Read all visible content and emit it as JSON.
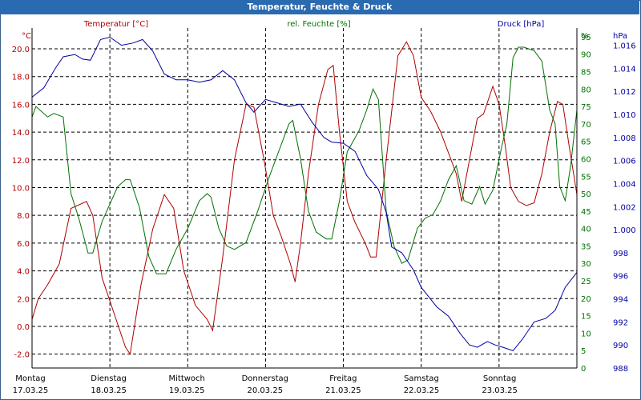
{
  "chart_data": {
    "type": "line",
    "title": "Temperatur, Feuchte & Druck",
    "colors": {
      "temperature": "#b00000",
      "humidity": "#007000",
      "pressure": "#0000a0",
      "grid": "#000000",
      "title_bg": "#2a6ab0"
    },
    "x_range": [
      0,
      7
    ],
    "x_labels": [
      {
        "day": "Montag",
        "date": "17.03.25"
      },
      {
        "day": "Dienstag",
        "date": "18.03.25"
      },
      {
        "day": "Mittwoch",
        "date": "19.03.25"
      },
      {
        "day": "Donnerstag",
        "date": "20.03.25"
      },
      {
        "day": "Freitag",
        "date": "21.03.25"
      },
      {
        "day": "Samstag",
        "date": "22.03.25"
      },
      {
        "day": "Sonntag",
        "date": "23.03.25"
      }
    ],
    "axes": {
      "temperature": {
        "unit": "°C",
        "label": "Temperatur [°C]",
        "ylim": [
          -3,
          21.5
        ],
        "ticks": [
          "20.0",
          "18.0",
          "16.0",
          "14.0",
          "12.0",
          "10.0",
          "8.0",
          "6.0",
          "4.0",
          "2.0",
          "0.0",
          "-2.0"
        ]
      },
      "humidity": {
        "unit": "%",
        "label": "rel. Feuchte [%]",
        "ylim": [
          0,
          97.5
        ],
        "ticks": [
          "95",
          "90",
          "85",
          "80",
          "75",
          "70",
          "65",
          "60",
          "55",
          "50",
          "45",
          "40",
          "35",
          "30",
          "25",
          "20",
          "15",
          "10",
          "5",
          "0"
        ]
      },
      "pressure": {
        "unit": "hPa",
        "label": "Druck [hPa]",
        "ylim": [
          988,
          1017.5
        ],
        "ticks": [
          "1.016",
          "1.014",
          "1.012",
          "1.010",
          "1.008",
          "1.006",
          "1.004",
          "1.002",
          "1.000",
          "998",
          "996",
          "994",
          "992",
          "990",
          "988"
        ]
      }
    },
    "series": [
      {
        "name": "Temperatur",
        "color": "#b00000",
        "axis": "temperature",
        "points": [
          [
            0,
            0.5
          ],
          [
            0.08,
            2
          ],
          [
            0.2,
            3
          ],
          [
            0.35,
            4.5
          ],
          [
            0.5,
            8.5
          ],
          [
            0.7,
            9
          ],
          [
            0.78,
            8
          ],
          [
            0.9,
            3.5
          ],
          [
            1.05,
            1
          ],
          [
            1.2,
            -1.5
          ],
          [
            1.26,
            -2
          ],
          [
            1.4,
            3
          ],
          [
            1.55,
            7
          ],
          [
            1.7,
            9.5
          ],
          [
            1.82,
            8.5
          ],
          [
            1.95,
            4
          ],
          [
            2.1,
            1.5
          ],
          [
            2.25,
            0.5
          ],
          [
            2.32,
            -0.3
          ],
          [
            2.45,
            5
          ],
          [
            2.6,
            12
          ],
          [
            2.75,
            16
          ],
          [
            2.85,
            15.8
          ],
          [
            2.98,
            12
          ],
          [
            3.1,
            8
          ],
          [
            3.2,
            6.5
          ],
          [
            3.32,
            4.5
          ],
          [
            3.38,
            3.2
          ],
          [
            3.45,
            6
          ],
          [
            3.55,
            11
          ],
          [
            3.68,
            16
          ],
          [
            3.8,
            18.5
          ],
          [
            3.87,
            18.8
          ],
          [
            3.95,
            14
          ],
          [
            4.05,
            9
          ],
          [
            4.15,
            7.5
          ],
          [
            4.28,
            6
          ],
          [
            4.35,
            5
          ],
          [
            4.42,
            5
          ],
          [
            4.55,
            12
          ],
          [
            4.7,
            19.5
          ],
          [
            4.81,
            20.5
          ],
          [
            4.9,
            19.5
          ],
          [
            5.0,
            16.5
          ],
          [
            5.12,
            15.5
          ],
          [
            5.25,
            14
          ],
          [
            5.35,
            12.5
          ],
          [
            5.45,
            11
          ],
          [
            5.52,
            9
          ],
          [
            5.62,
            12
          ],
          [
            5.72,
            15
          ],
          [
            5.8,
            15.3
          ],
          [
            5.92,
            17.3
          ],
          [
            6.0,
            16
          ],
          [
            6.08,
            13
          ],
          [
            6.15,
            10
          ],
          [
            6.25,
            9
          ],
          [
            6.35,
            8.7
          ],
          [
            6.45,
            8.9
          ],
          [
            6.55,
            11
          ],
          [
            6.65,
            14
          ],
          [
            6.75,
            16.2
          ],
          [
            6.82,
            16
          ],
          [
            6.9,
            13
          ],
          [
            7.0,
            9.5
          ]
        ]
      },
      {
        "name": "rel. Feuchte",
        "color": "#007000",
        "axis": "humidity",
        "points": [
          [
            0,
            72
          ],
          [
            0.05,
            75
          ],
          [
            0.2,
            72
          ],
          [
            0.28,
            73
          ],
          [
            0.4,
            72
          ],
          [
            0.5,
            50
          ],
          [
            0.6,
            43
          ],
          [
            0.72,
            33
          ],
          [
            0.78,
            33
          ],
          [
            0.9,
            42
          ],
          [
            1.0,
            47
          ],
          [
            1.1,
            52
          ],
          [
            1.2,
            54
          ],
          [
            1.26,
            54
          ],
          [
            1.38,
            46
          ],
          [
            1.5,
            32
          ],
          [
            1.6,
            27
          ],
          [
            1.72,
            27
          ],
          [
            1.85,
            34
          ],
          [
            2.0,
            40
          ],
          [
            2.15,
            48
          ],
          [
            2.25,
            50
          ],
          [
            2.3,
            49
          ],
          [
            2.4,
            40
          ],
          [
            2.5,
            35
          ],
          [
            2.6,
            34
          ],
          [
            2.75,
            36
          ],
          [
            2.9,
            45
          ],
          [
            3.05,
            55
          ],
          [
            3.2,
            64
          ],
          [
            3.3,
            70
          ],
          [
            3.35,
            71
          ],
          [
            3.45,
            60
          ],
          [
            3.55,
            45
          ],
          [
            3.65,
            39
          ],
          [
            3.78,
            37
          ],
          [
            3.85,
            37
          ],
          [
            3.95,
            48
          ],
          [
            4.05,
            62
          ],
          [
            4.2,
            68
          ],
          [
            4.3,
            74
          ],
          [
            4.38,
            80
          ],
          [
            4.45,
            77
          ],
          [
            4.55,
            45
          ],
          [
            4.65,
            35
          ],
          [
            4.75,
            30
          ],
          [
            4.83,
            31
          ],
          [
            4.95,
            40
          ],
          [
            5.05,
            43
          ],
          [
            5.15,
            44
          ],
          [
            5.25,
            48
          ],
          [
            5.35,
            54
          ],
          [
            5.45,
            58
          ],
          [
            5.55,
            48
          ],
          [
            5.65,
            47
          ],
          [
            5.75,
            52
          ],
          [
            5.82,
            47
          ],
          [
            5.92,
            51
          ],
          [
            6.02,
            62
          ],
          [
            6.1,
            70
          ],
          [
            6.18,
            89
          ],
          [
            6.25,
            92
          ],
          [
            6.32,
            92
          ],
          [
            6.45,
            91
          ],
          [
            6.55,
            88
          ],
          [
            6.65,
            74
          ],
          [
            6.72,
            70
          ],
          [
            6.78,
            52
          ],
          [
            6.85,
            48
          ],
          [
            6.92,
            58
          ],
          [
            7.0,
            74
          ]
        ]
      },
      {
        "name": "Druck",
        "color": "#0000a0",
        "axis": "pressure",
        "points": [
          [
            0,
            1011.5
          ],
          [
            0.15,
            1012.3
          ],
          [
            0.3,
            1014
          ],
          [
            0.4,
            1015
          ],
          [
            0.55,
            1015.2
          ],
          [
            0.65,
            1014.8
          ],
          [
            0.75,
            1014.7
          ],
          [
            0.88,
            1016.5
          ],
          [
            1.0,
            1016.7
          ],
          [
            1.15,
            1016
          ],
          [
            1.3,
            1016.2
          ],
          [
            1.42,
            1016.5
          ],
          [
            1.55,
            1015.5
          ],
          [
            1.7,
            1013.5
          ],
          [
            1.85,
            1013
          ],
          [
            2.0,
            1013
          ],
          [
            2.15,
            1012.8
          ],
          [
            2.3,
            1013
          ],
          [
            2.45,
            1013.8
          ],
          [
            2.6,
            1013
          ],
          [
            2.75,
            1011
          ],
          [
            2.85,
            1010.2
          ],
          [
            3.0,
            1011.3
          ],
          [
            3.15,
            1011
          ],
          [
            3.3,
            1010.7
          ],
          [
            3.45,
            1010.9
          ],
          [
            3.6,
            1009.3
          ],
          [
            3.75,
            1008
          ],
          [
            3.85,
            1007.6
          ],
          [
            4.0,
            1007.5
          ],
          [
            4.15,
            1006.8
          ],
          [
            4.3,
            1004.7
          ],
          [
            4.45,
            1003.5
          ],
          [
            4.55,
            1001.5
          ],
          [
            4.62,
            998.5
          ],
          [
            4.75,
            998
          ],
          [
            4.9,
            996.5
          ],
          [
            5.0,
            995
          ],
          [
            5.2,
            993.3
          ],
          [
            5.35,
            992.5
          ],
          [
            5.5,
            991
          ],
          [
            5.62,
            990
          ],
          [
            5.72,
            989.8
          ],
          [
            5.85,
            990.3
          ],
          [
            5.95,
            990
          ],
          [
            6.05,
            989.8
          ],
          [
            6.18,
            989.5
          ],
          [
            6.3,
            990.5
          ],
          [
            6.45,
            992
          ],
          [
            6.6,
            992.3
          ],
          [
            6.72,
            993
          ],
          [
            6.85,
            995
          ],
          [
            7.0,
            996.3
          ]
        ]
      }
    ]
  }
}
